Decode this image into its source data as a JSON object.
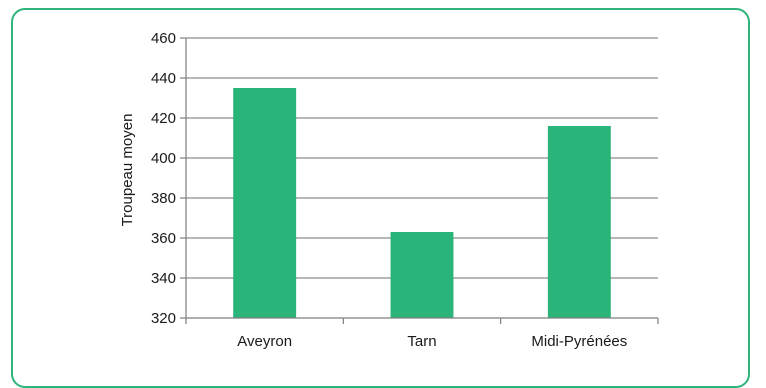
{
  "chart_data": {
    "type": "bar",
    "categories": [
      "Aveyron",
      "Tarn",
      "Midi-Pyrénées"
    ],
    "values": [
      435,
      363,
      416
    ],
    "title": "",
    "xlabel": "",
    "ylabel": "Troupeau moyen",
    "ylim": [
      320,
      460
    ],
    "yticks": [
      320,
      340,
      360,
      380,
      400,
      420,
      440,
      460
    ],
    "grid": true,
    "legend": "none",
    "bar_color": "#2bb47a",
    "frame_color": "#2fb57c"
  }
}
